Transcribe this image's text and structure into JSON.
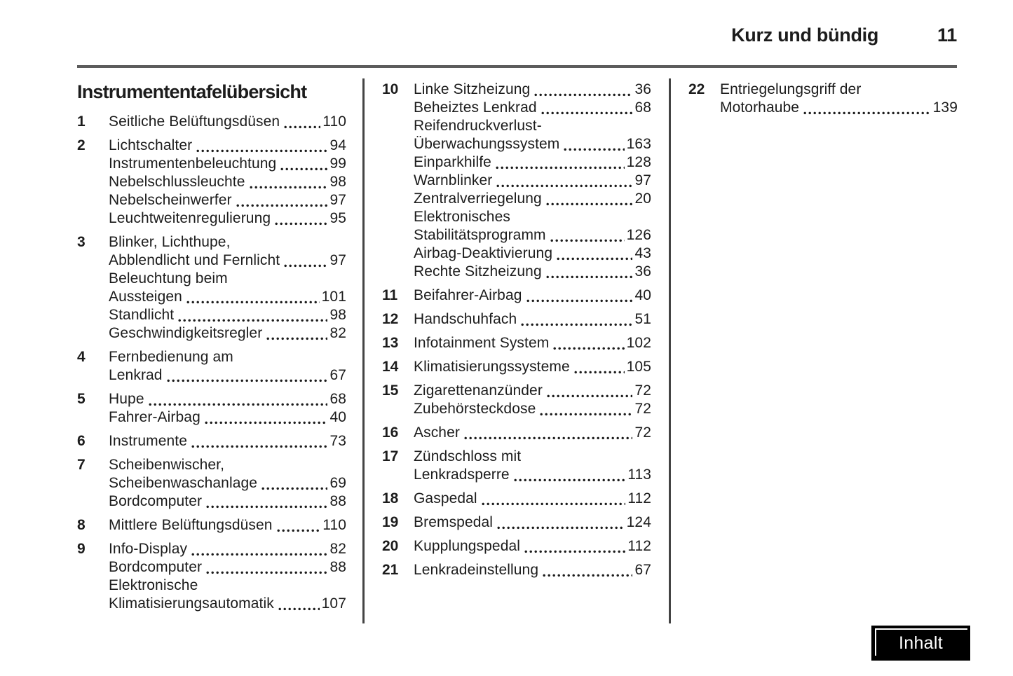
{
  "header": {
    "section": "Kurz und bündig",
    "page_number": "11"
  },
  "content": {
    "title": "Instrumententafelübersicht",
    "columns": [
      {
        "items": [
          {
            "num": "1",
            "entries": [
              {
                "lines": [
                  "Seitliche Belüftungsdüsen"
                ],
                "page": "110"
              }
            ]
          },
          {
            "num": "2",
            "entries": [
              {
                "lines": [
                  "Lichtschalter"
                ],
                "page": "94"
              },
              {
                "lines": [
                  "Instrumentenbeleuchtung"
                ],
                "page": "99"
              },
              {
                "lines": [
                  "Nebelschlussleuchte"
                ],
                "page": "98"
              },
              {
                "lines": [
                  "Nebelscheinwerfer"
                ],
                "page": "97"
              },
              {
                "lines": [
                  "Leuchtweitenregulierung"
                ],
                "page": "95"
              }
            ]
          },
          {
            "num": "3",
            "entries": [
              {
                "lines": [
                  "Blinker, Lichthupe,",
                  "Abblendlicht und Fernlicht"
                ],
                "page": "97"
              },
              {
                "lines": [
                  "Beleuchtung beim",
                  "Aussteigen"
                ],
                "page": "101"
              },
              {
                "lines": [
                  "Standlicht"
                ],
                "page": "98"
              },
              {
                "lines": [
                  "Geschwindigkeitsregler"
                ],
                "page": "82"
              }
            ]
          },
          {
            "num": "4",
            "entries": [
              {
                "lines": [
                  "Fernbedienung am",
                  "Lenkrad"
                ],
                "page": "67"
              }
            ]
          },
          {
            "num": "5",
            "entries": [
              {
                "lines": [
                  "Hupe"
                ],
                "page": "68"
              },
              {
                "lines": [
                  "Fahrer-Airbag"
                ],
                "page": "40"
              }
            ]
          },
          {
            "num": "6",
            "entries": [
              {
                "lines": [
                  "Instrumente"
                ],
                "page": "73"
              }
            ]
          },
          {
            "num": "7",
            "entries": [
              {
                "lines": [
                  "Scheibenwischer,",
                  "Scheibenwaschanlage"
                ],
                "page": "69"
              },
              {
                "lines": [
                  "Bordcomputer"
                ],
                "page": "88"
              }
            ]
          },
          {
            "num": "8",
            "entries": [
              {
                "lines": [
                  "Mittlere Belüftungsdüsen"
                ],
                "page": "110"
              }
            ]
          },
          {
            "num": "9",
            "entries": [
              {
                "lines": [
                  "Info-Display"
                ],
                "page": "82"
              },
              {
                "lines": [
                  "Bordcomputer"
                ],
                "page": "88"
              },
              {
                "lines": [
                  "Elektronische",
                  "Klimatisierungsautomatik"
                ],
                "page": "107"
              }
            ]
          }
        ]
      },
      {
        "items": [
          {
            "num": "10",
            "entries": [
              {
                "lines": [
                  "Linke Sitzheizung"
                ],
                "page": "36"
              },
              {
                "lines": [
                  "Beheiztes Lenkrad"
                ],
                "page": "68"
              },
              {
                "lines": [
                  "Reifendruckverlust-",
                  "Überwachungssystem"
                ],
                "page": "163"
              },
              {
                "lines": [
                  "Einparkhilfe"
                ],
                "page": "128"
              },
              {
                "lines": [
                  "Warnblinker"
                ],
                "page": "97"
              },
              {
                "lines": [
                  "Zentralverriegelung"
                ],
                "page": "20"
              },
              {
                "lines": [
                  "Elektronisches",
                  "Stabilitätsprogramm"
                ],
                "page": "126"
              },
              {
                "lines": [
                  "Airbag-Deaktivierung"
                ],
                "page": "43"
              },
              {
                "lines": [
                  "Rechte Sitzheizung"
                ],
                "page": "36"
              }
            ]
          },
          {
            "num": "11",
            "entries": [
              {
                "lines": [
                  "Beifahrer-Airbag"
                ],
                "page": "40"
              }
            ]
          },
          {
            "num": "12",
            "entries": [
              {
                "lines": [
                  "Handschuhfach"
                ],
                "page": "51"
              }
            ]
          },
          {
            "num": "13",
            "entries": [
              {
                "lines": [
                  "Infotainment System"
                ],
                "page": "102"
              }
            ]
          },
          {
            "num": "14",
            "entries": [
              {
                "lines": [
                  "Klimatisierungssysteme"
                ],
                "page": "105"
              }
            ]
          },
          {
            "num": "15",
            "entries": [
              {
                "lines": [
                  "Zigarettenanzünder"
                ],
                "page": "72"
              },
              {
                "lines": [
                  "Zubehörsteckdose"
                ],
                "page": "72"
              }
            ]
          },
          {
            "num": "16",
            "entries": [
              {
                "lines": [
                  "Ascher"
                ],
                "page": "72"
              }
            ]
          },
          {
            "num": "17",
            "entries": [
              {
                "lines": [
                  "Zündschloss mit",
                  "Lenkradsperre"
                ],
                "page": "113"
              }
            ]
          },
          {
            "num": "18",
            "entries": [
              {
                "lines": [
                  "Gaspedal"
                ],
                "page": "112"
              }
            ]
          },
          {
            "num": "19",
            "entries": [
              {
                "lines": [
                  "Bremspedal"
                ],
                "page": "124"
              }
            ]
          },
          {
            "num": "20",
            "entries": [
              {
                "lines": [
                  "Kupplungspedal"
                ],
                "page": "112"
              }
            ]
          },
          {
            "num": "21",
            "entries": [
              {
                "lines": [
                  "Lenkradeinstellung"
                ],
                "page": "67"
              }
            ]
          }
        ]
      },
      {
        "items": [
          {
            "num": "22",
            "entries": [
              {
                "lines": [
                  "Entriegelungsgriff der",
                  "Motorhaube"
                ],
                "page": "139"
              }
            ]
          }
        ]
      }
    ]
  },
  "footer": {
    "button_label": "Inhalt"
  },
  "colors": {
    "text": "#1c1c1c",
    "rule": "#5c5c5c",
    "divider": "#444444",
    "button_bg": "#000000",
    "button_fg": "#ffffff"
  }
}
